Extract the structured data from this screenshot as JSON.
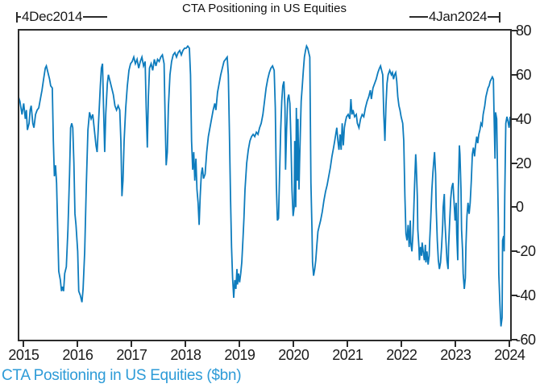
{
  "figure": {
    "title": "CTA Positioning in US Equities",
    "footer_label": "CTA Positioning in US Equities ($bn)",
    "annotations": {
      "start_date_label": "4Dec2014",
      "end_date_label": "4Jan2024"
    },
    "colors": {
      "line": "#0e7cbd",
      "footer_text": "#2d9bd7",
      "axis": "#2b2b2b",
      "text": "#1a1a1a"
    }
  },
  "chart_data": {
    "type": "line",
    "title": "CTA Positioning in US Equities",
    "series_name": "CTA Positioning in US Equities ($bn)",
    "xlabel": "",
    "ylabel": "",
    "legend": "none",
    "grid": false,
    "x_range": [
      2014.92,
      2024.01
    ],
    "y_range": [
      -60,
      80
    ],
    "x_ticks": [
      2015,
      2016,
      2017,
      2018,
      2019,
      2020,
      2021,
      2022,
      2023,
      2024
    ],
    "y_ticks": [
      80,
      60,
      40,
      20,
      0,
      -20,
      -40,
      -60
    ],
    "x": [
      2014.89,
      2014.93,
      2014.97,
      2015.0,
      2015.03,
      2015.05,
      2015.07,
      2015.1,
      2015.12,
      2015.14,
      2015.17,
      2015.19,
      2015.22,
      2015.25,
      2015.28,
      2015.31,
      2015.34,
      2015.37,
      2015.4,
      2015.42,
      2015.45,
      2015.48,
      2015.5,
      2015.53,
      2015.55,
      2015.57,
      2015.59,
      2015.61,
      2015.63,
      2015.65,
      2015.68,
      2015.7,
      2015.72,
      2015.74,
      2015.76,
      2015.79,
      2015.82,
      2015.85,
      2015.87,
      2015.89,
      2015.91,
      2015.93,
      2015.95,
      2015.97,
      2016.0,
      2016.02,
      2016.05,
      2016.08,
      2016.1,
      2016.13,
      2016.16,
      2016.19,
      2016.22,
      2016.25,
      2016.28,
      2016.31,
      2016.34,
      2016.36,
      2016.39,
      2016.42,
      2016.44,
      2016.46,
      2016.48,
      2016.5,
      2016.52,
      2016.55,
      2016.57,
      2016.6,
      2016.63,
      2016.66,
      2016.69,
      2016.72,
      2016.75,
      2016.78,
      2016.8,
      2016.82,
      2016.84,
      2016.86,
      2016.89,
      2016.92,
      2016.95,
      2016.98,
      2017.01,
      2017.04,
      2017.07,
      2017.1,
      2017.13,
      2017.16,
      2017.19,
      2017.22,
      2017.25,
      2017.27,
      2017.29,
      2017.31,
      2017.33,
      2017.36,
      2017.39,
      2017.42,
      2017.45,
      2017.48,
      2017.51,
      2017.54,
      2017.57,
      2017.6,
      2017.62,
      2017.64,
      2017.66,
      2017.68,
      2017.71,
      2017.74,
      2017.77,
      2017.8,
      2017.83,
      2017.86,
      2017.89,
      2017.92,
      2017.95,
      2017.98,
      2018.01,
      2018.04,
      2018.07,
      2018.09,
      2018.11,
      2018.13,
      2018.15,
      2018.17,
      2018.19,
      2018.21,
      2018.23,
      2018.25,
      2018.27,
      2018.29,
      2018.31,
      2018.33,
      2018.36,
      2018.39,
      2018.42,
      2018.45,
      2018.48,
      2018.51,
      2018.54,
      2018.56,
      2018.59,
      2018.62,
      2018.65,
      2018.68,
      2018.71,
      2018.74,
      2018.77,
      2018.79,
      2018.81,
      2018.83,
      2018.85,
      2018.87,
      2018.89,
      2018.91,
      2018.93,
      2018.95,
      2018.96,
      2018.98,
      2019.0,
      2019.02,
      2019.04,
      2019.06,
      2019.08,
      2019.1,
      2019.13,
      2019.16,
      2019.19,
      2019.22,
      2019.25,
      2019.28,
      2019.31,
      2019.34,
      2019.37,
      2019.4,
      2019.43,
      2019.46,
      2019.49,
      2019.52,
      2019.55,
      2019.58,
      2019.61,
      2019.64,
      2019.66,
      2019.68,
      2019.7,
      2019.72,
      2019.74,
      2019.76,
      2019.78,
      2019.8,
      2019.82,
      2019.84,
      2019.85,
      2019.87,
      2019.89,
      2019.91,
      2019.93,
      2019.95,
      2019.97,
      2019.99,
      2020.01,
      2020.02,
      2020.04,
      2020.05,
      2020.07,
      2020.08,
      2020.1,
      2020.11,
      2020.13,
      2020.14,
      2020.16,
      2020.18,
      2020.2,
      2020.22,
      2020.24,
      2020.26,
      2020.28,
      2020.3,
      2020.31,
      2020.32,
      2020.34,
      2020.35,
      2020.37,
      2020.39,
      2020.41,
      2020.43,
      2020.45,
      2020.47,
      2020.5,
      2020.53,
      2020.56,
      2020.59,
      2020.62,
      2020.65,
      2020.68,
      2020.71,
      2020.74,
      2020.76,
      2020.78,
      2020.8,
      2020.82,
      2020.84,
      2020.86,
      2020.88,
      2020.9,
      2020.92,
      2020.94,
      2020.96,
      2020.98,
      2021.01,
      2021.04,
      2021.06,
      2021.08,
      2021.1,
      2021.13,
      2021.16,
      2021.18,
      2021.21,
      2021.24,
      2021.27,
      2021.3,
      2021.33,
      2021.36,
      2021.39,
      2021.42,
      2021.44,
      2021.47,
      2021.5,
      2021.53,
      2021.56,
      2021.59,
      2021.61,
      2021.63,
      2021.65,
      2021.67,
      2021.69,
      2021.71,
      2021.73,
      2021.75,
      2021.78,
      2021.81,
      2021.83,
      2021.85,
      2021.87,
      2021.89,
      2021.91,
      2021.93,
      2021.95,
      2021.97,
      2021.99,
      2022.02,
      2022.04,
      2022.06,
      2022.08,
      2022.1,
      2022.12,
      2022.14,
      2022.16,
      2022.17,
      2022.19,
      2022.21,
      2022.22,
      2022.24,
      2022.26,
      2022.27,
      2022.29,
      2022.3,
      2022.32,
      2022.33,
      2022.35,
      2022.37,
      2022.38,
      2022.4,
      2022.42,
      2022.44,
      2022.45,
      2022.47,
      2022.49,
      2022.51,
      2022.52,
      2022.54,
      2022.56,
      2022.58,
      2022.6,
      2022.61,
      2022.63,
      2022.64,
      2022.66,
      2022.68,
      2022.7,
      2022.72,
      2022.74,
      2022.76,
      2022.77,
      2022.79,
      2022.8,
      2022.82,
      2022.84,
      2022.86,
      2022.87,
      2022.89,
      2022.91,
      2022.93,
      2022.95,
      2022.97,
      2022.99,
      2023.01,
      2023.02,
      2023.04,
      2023.05,
      2023.07,
      2023.08,
      2023.1,
      2023.11,
      2023.13,
      2023.14,
      2023.16,
      2023.18,
      2023.19,
      2023.21,
      2023.23,
      2023.25,
      2023.27,
      2023.29,
      2023.31,
      2023.33,
      2023.35,
      2023.37,
      2023.39,
      2023.41,
      2023.43,
      2023.45,
      2023.47,
      2023.49,
      2023.51,
      2023.54,
      2023.56,
      2023.58,
      2023.6,
      2023.62,
      2023.64,
      2023.66,
      2023.68,
      2023.7,
      2023.71,
      2023.73,
      2023.74,
      2023.76,
      2023.77,
      2023.79,
      2023.8,
      2023.82,
      2023.83,
      2023.84,
      2023.86,
      2023.87,
      2023.89,
      2023.9,
      2023.91,
      2023.93,
      2023.95,
      2023.97,
      2023.99,
      2024.01
    ],
    "y": [
      51,
      48,
      42,
      47,
      40,
      44,
      35,
      38,
      44,
      46,
      38,
      36,
      42,
      44,
      45,
      49,
      53,
      58,
      63,
      64,
      61,
      58,
      55,
      54,
      30,
      14,
      19,
      11,
      -10,
      -29,
      -33,
      -38,
      -36,
      -38,
      -30,
      -27,
      -10,
      15,
      36,
      38,
      36,
      20,
      -3,
      -8,
      -20,
      -38,
      -40,
      -43,
      -37,
      -20,
      10,
      35,
      43,
      40,
      42,
      35,
      28,
      25,
      40,
      55,
      63,
      65,
      45,
      25,
      42,
      56,
      60,
      57,
      54,
      51,
      46,
      44,
      46,
      44,
      30,
      5,
      12,
      30,
      45,
      55,
      62,
      65,
      66,
      68,
      65,
      67,
      63,
      66,
      68,
      64,
      66,
      45,
      27,
      50,
      63,
      65,
      62,
      67,
      64,
      67,
      66,
      68,
      69,
      65,
      40,
      19,
      25,
      45,
      60,
      66,
      69,
      70,
      68,
      70,
      71,
      69,
      71,
      72,
      72,
      73,
      72,
      60,
      30,
      17,
      25,
      12,
      22,
      8,
      2,
      -8,
      5,
      15,
      18,
      13,
      15,
      25,
      32,
      36,
      40,
      44,
      47,
      44,
      52,
      56,
      60,
      63,
      66,
      67,
      68,
      60,
      35,
      5,
      -18,
      -32,
      -41,
      -33,
      -37,
      -28,
      -35,
      -30,
      -34,
      -30,
      -25,
      -15,
      -5,
      8,
      20,
      26,
      30,
      32,
      33,
      32,
      34,
      33,
      36,
      38,
      42,
      48,
      54,
      58,
      61,
      63,
      64,
      62,
      45,
      10,
      -6,
      -5,
      15,
      35,
      48,
      55,
      57,
      45,
      17,
      35,
      49,
      51,
      47,
      30,
      8,
      -4,
      0,
      30,
      0,
      45,
      12,
      40,
      8,
      20,
      40,
      48,
      55,
      62,
      68,
      71,
      73,
      72,
      70,
      68,
      40,
      11,
      -10,
      -25,
      -31,
      -28,
      -24,
      -17,
      -11,
      -9,
      -6,
      -2,
      3,
      7,
      10,
      14,
      18,
      23,
      27,
      30,
      33,
      36,
      30,
      26,
      33,
      26,
      38,
      28,
      36,
      39,
      41,
      42,
      40,
      49,
      42,
      44,
      41,
      42,
      38,
      36,
      40,
      42,
      41,
      45,
      48,
      50,
      53,
      49,
      54,
      56,
      58,
      61,
      63,
      64,
      62,
      60,
      42,
      30,
      46,
      56,
      60,
      62,
      60,
      61,
      58,
      60,
      61,
      57,
      50,
      46,
      44,
      41,
      38,
      30,
      5,
      -12,
      -15,
      -8,
      -18,
      -6,
      -16,
      -20,
      -12,
      -5,
      10,
      24,
      20,
      5,
      -10,
      -18,
      -24,
      -18,
      -22,
      -16,
      -20,
      -24,
      -17,
      -25,
      -20,
      -26,
      -22,
      -15,
      -5,
      8,
      16,
      22,
      25,
      15,
      0,
      -15,
      -24,
      -28,
      -25,
      -18,
      -8,
      0,
      6,
      -5,
      -15,
      -24,
      -28,
      -18,
      -6,
      4,
      9,
      11,
      3,
      -6,
      2,
      -12,
      -24,
      8,
      28,
      24,
      8,
      -10,
      -20,
      -30,
      -37,
      -32,
      -18,
      -4,
      2,
      -3,
      2,
      12,
      24,
      27,
      23,
      28,
      32,
      29,
      33,
      35,
      38,
      37,
      42,
      46,
      50,
      52,
      54,
      55,
      57,
      58,
      59,
      58,
      44,
      22,
      43,
      40,
      25,
      -5,
      -30,
      -44,
      -49,
      -54,
      -50,
      -15,
      -13,
      -20,
      5,
      38,
      41,
      39,
      36,
      41
    ]
  }
}
